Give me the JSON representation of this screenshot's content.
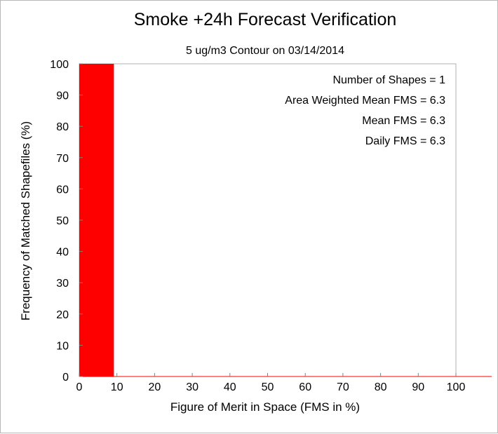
{
  "chart_data": {
    "type": "bar",
    "title": "Smoke +24h Forecast Verification",
    "subtitle": "5 ug/m3 Contour on 03/14/2014",
    "xlabel": "Figure of Merit in Space (FMS in %)",
    "ylabel": "Frequency of Matched Shapefiles (%)",
    "xlim": [
      0,
      100
    ],
    "ylim": [
      0,
      100
    ],
    "xticks": [
      0,
      10,
      20,
      30,
      40,
      50,
      60,
      70,
      80,
      90,
      100
    ],
    "yticks": [
      0,
      10,
      20,
      30,
      40,
      50,
      60,
      70,
      80,
      90,
      100
    ],
    "bin_width": 10,
    "bins": [
      {
        "x0": 0,
        "x1": 10,
        "value": 100
      },
      {
        "x0": 10,
        "x1": 20,
        "value": 0
      },
      {
        "x0": 20,
        "x1": 30,
        "value": 0
      },
      {
        "x0": 30,
        "x1": 40,
        "value": 0
      },
      {
        "x0": 40,
        "x1": 50,
        "value": 0
      },
      {
        "x0": 50,
        "x1": 60,
        "value": 0
      },
      {
        "x0": 60,
        "x1": 70,
        "value": 0
      },
      {
        "x0": 70,
        "x1": 80,
        "value": 0
      },
      {
        "x0": 80,
        "x1": 90,
        "value": 0
      },
      {
        "x0": 90,
        "x1": 100,
        "value": 0
      }
    ],
    "bar_color": "#ff0000",
    "grid": false,
    "annotations": [
      "Number of Shapes = 1",
      "Area Weighted Mean FMS = 6.3",
      "Mean FMS = 6.3",
      "Daily FMS = 6.3"
    ]
  }
}
